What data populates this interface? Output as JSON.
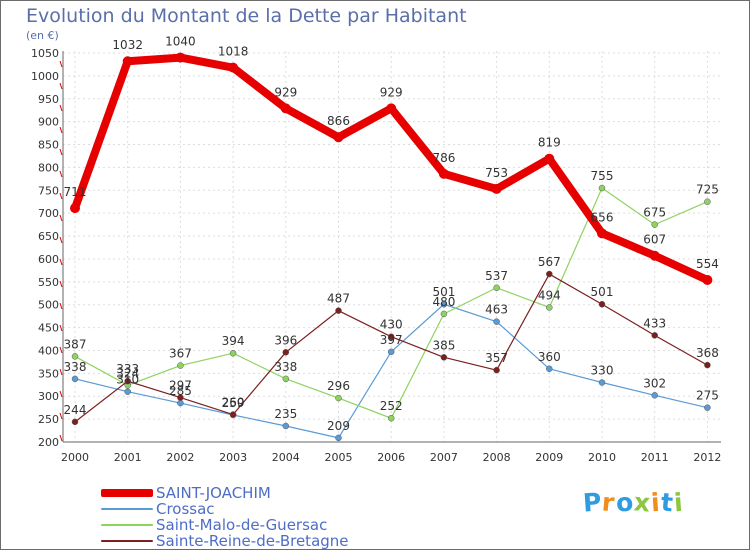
{
  "title": "Evolution du Montant de la Dette par Habitant",
  "unit_label": "(en €)",
  "logo_text": "Proxiti",
  "logo_colors": [
    "#2f9be0",
    "#f18d1e",
    "#2f9be0",
    "#8dc63f",
    "#f18d1e",
    "#2f9be0",
    "#8dc63f"
  ],
  "chart_data": {
    "type": "line",
    "x": [
      2000,
      2001,
      2002,
      2003,
      2004,
      2005,
      2006,
      2007,
      2008,
      2009,
      2010,
      2011,
      2012
    ],
    "ylim": [
      200,
      1050
    ],
    "yticks": [
      200,
      250,
      300,
      350,
      400,
      450,
      500,
      550,
      600,
      650,
      700,
      750,
      800,
      850,
      900,
      950,
      1000,
      1050
    ],
    "grid": true,
    "legend_position": "bottom-left",
    "series": [
      {
        "name": "SAINT-JOACHIM",
        "color": "#e60000",
        "thick": true,
        "values": [
          711,
          1032,
          1040,
          1018,
          929,
          866,
          929,
          786,
          753,
          819,
          656,
          607,
          554
        ],
        "labels": [
          "711",
          "1032",
          "1040",
          "1018",
          "929",
          "866",
          "929",
          "786",
          "753",
          "819",
          "656",
          "607",
          "554"
        ]
      },
      {
        "name": "Crossac",
        "color": "#5b9bd5",
        "thick": false,
        "values": [
          338,
          310,
          285,
          259,
          235,
          209,
          397,
          501,
          463,
          360,
          330,
          302,
          275
        ],
        "labels": [
          "338",
          "310",
          "285",
          "259",
          "235",
          "209",
          "397",
          "501",
          "463",
          "360",
          "330",
          "302",
          "275"
        ]
      },
      {
        "name": "Saint-Malo-de-Guersac",
        "color": "#8dd35f",
        "thick": false,
        "values": [
          387,
          324,
          367,
          394,
          338,
          296,
          252,
          480,
          537,
          494,
          755,
          675,
          725
        ],
        "labels": [
          "387",
          "324",
          "367",
          "394",
          "338",
          "296",
          "252",
          "480",
          "537",
          "494",
          "755",
          "675",
          "725"
        ]
      },
      {
        "name": "Sainte-Reine-de-Bretagne",
        "color": "#7b1f1f",
        "thick": false,
        "values": [
          244,
          333,
          297,
          260,
          396,
          487,
          430,
          385,
          357,
          567,
          501,
          433,
          368
        ],
        "labels": [
          "244",
          "333",
          "297",
          "260",
          "396",
          "487",
          "430",
          "385",
          "357",
          "567",
          "501",
          "433",
          "368"
        ]
      }
    ]
  }
}
